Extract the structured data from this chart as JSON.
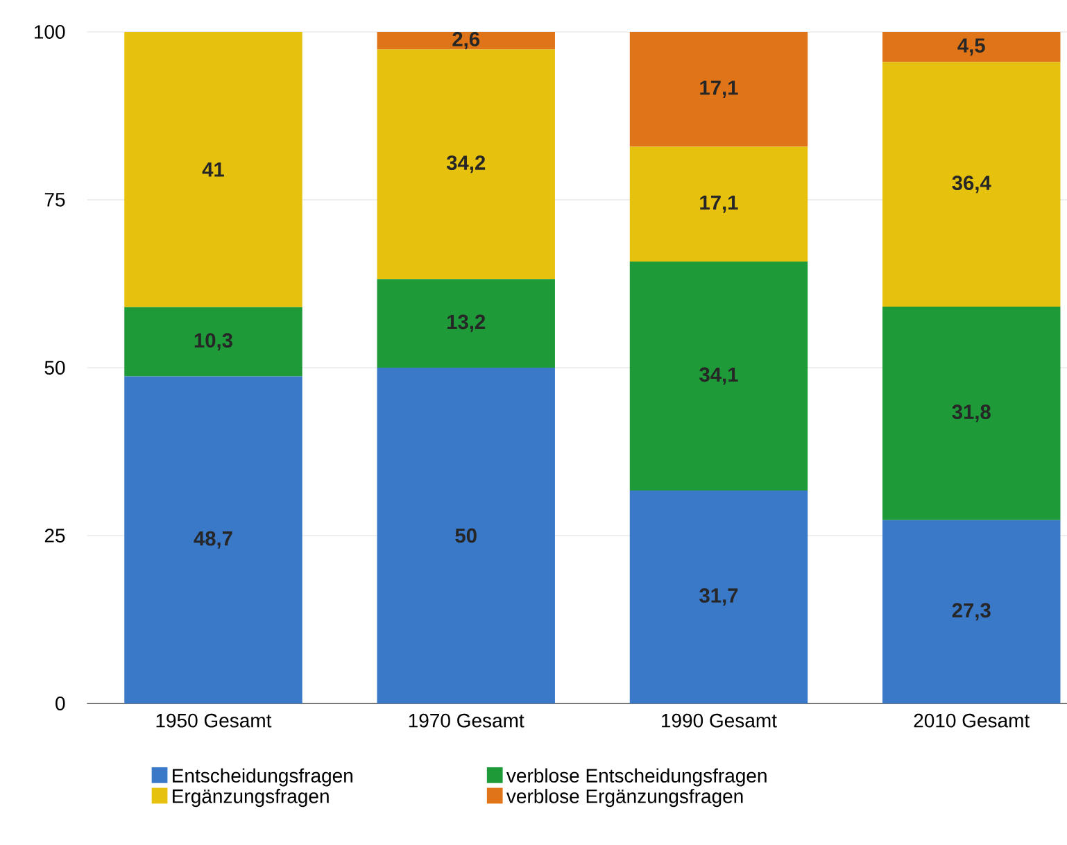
{
  "chart_data": {
    "type": "bar",
    "stacked": true,
    "categories": [
      "1950 Gesamt",
      "1970 Gesamt",
      "1990 Gesamt",
      "2010 Gesamt"
    ],
    "series": [
      {
        "name": "Entscheidungsfragen",
        "color": "#3a78c8",
        "values": [
          48.7,
          50,
          31.7,
          27.3
        ],
        "value_labels": [
          "48,7",
          "50",
          "31,7",
          "27,3"
        ]
      },
      {
        "name": "verblose Entscheidungsfragen",
        "color": "#1e9a38",
        "values": [
          10.3,
          13.2,
          34.1,
          31.8
        ],
        "value_labels": [
          "10,3",
          "13,2",
          "34,1",
          "31,8"
        ]
      },
      {
        "name": "Ergänzungsfragen",
        "color": "#e6c20e",
        "values": [
          41,
          34.2,
          17.1,
          36.4
        ],
        "value_labels": [
          "41",
          "34,2",
          "17,1",
          "36,4"
        ]
      },
      {
        "name": "verblose Ergänzungsfragen",
        "color": "#e07418",
        "values": [
          null,
          2.6,
          17.1,
          4.5
        ],
        "value_labels": [
          null,
          "2,6",
          "17,1",
          "4,5"
        ]
      }
    ],
    "ylim": [
      0,
      100
    ],
    "yticks": [
      0,
      25,
      50,
      75,
      100
    ],
    "grid": "y",
    "legend": "bottom"
  }
}
